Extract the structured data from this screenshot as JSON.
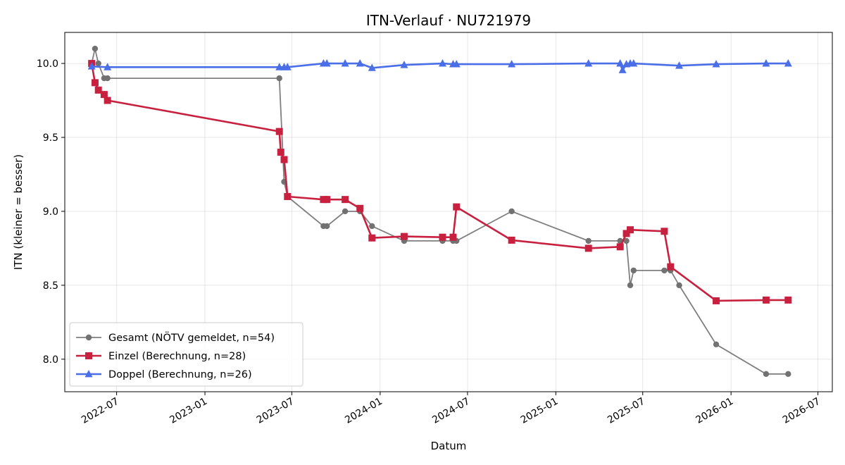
{
  "chart_data": {
    "type": "line",
    "title": "ITN-Verlauf · NU721979",
    "xlabel": "Datum",
    "ylabel": "ITN  (kleiner = besser)",
    "xlim": [
      "2022-03-15",
      "2026-07-31"
    ],
    "ylim": [
      7.78,
      10.21
    ],
    "x_ticks": [
      "2022-07",
      "2023-01",
      "2023-07",
      "2024-01",
      "2024-07",
      "2025-01",
      "2025-07",
      "2026-01",
      "2026-07"
    ],
    "y_ticks": [
      "8.0",
      "8.5",
      "9.0",
      "9.5",
      "10.0"
    ],
    "grid": true,
    "legend_position": "lower-left",
    "series": [
      {
        "name": "Gesamt (NÖTV gemeldet, n=54)",
        "color": "#555555",
        "marker": "circle",
        "points": [
          [
            "2022-05-10",
            10.0
          ],
          [
            "2022-05-17",
            10.1
          ],
          [
            "2022-05-24",
            10.0
          ],
          [
            "2022-06-05",
            9.9
          ],
          [
            "2022-06-12",
            9.9
          ],
          [
            "2023-06-05",
            9.9
          ],
          [
            "2023-06-15",
            9.2
          ],
          [
            "2023-06-22",
            9.1
          ],
          [
            "2023-09-05",
            8.9
          ],
          [
            "2023-09-12",
            8.9
          ],
          [
            "2023-10-20",
            9.0
          ],
          [
            "2023-11-20",
            9.0
          ],
          [
            "2023-12-15",
            8.9
          ],
          [
            "2024-02-20",
            8.8
          ],
          [
            "2024-05-10",
            8.8
          ],
          [
            "2024-06-01",
            8.8
          ],
          [
            "2024-06-08",
            8.8
          ],
          [
            "2024-10-01",
            9.0
          ],
          [
            "2025-03-10",
            8.8
          ],
          [
            "2025-05-15",
            8.8
          ],
          [
            "2025-05-28",
            8.8
          ],
          [
            "2025-06-05",
            8.5
          ],
          [
            "2025-06-12",
            8.6
          ],
          [
            "2025-08-15",
            8.6
          ],
          [
            "2025-08-28",
            8.6
          ],
          [
            "2025-09-15",
            8.5
          ],
          [
            "2025-12-01",
            8.1
          ],
          [
            "2026-03-15",
            7.9
          ],
          [
            "2026-04-30",
            7.9
          ]
        ]
      },
      {
        "name": "Einzel (Berechnung, n=28)",
        "color": "#c8203f",
        "marker": "square",
        "points": [
          [
            "2022-05-10",
            10.0
          ],
          [
            "2022-05-17",
            9.87
          ],
          [
            "2022-05-24",
            9.82
          ],
          [
            "2022-06-05",
            9.79
          ],
          [
            "2022-06-12",
            9.75
          ],
          [
            "2023-06-05",
            9.54
          ],
          [
            "2023-06-08",
            9.4
          ],
          [
            "2023-06-15",
            9.35
          ],
          [
            "2023-06-22",
            9.1
          ],
          [
            "2023-09-05",
            9.08
          ],
          [
            "2023-09-12",
            9.08
          ],
          [
            "2023-10-20",
            9.08
          ],
          [
            "2023-11-20",
            9.02
          ],
          [
            "2023-12-15",
            8.82
          ],
          [
            "2024-02-20",
            8.83
          ],
          [
            "2024-05-10",
            8.825
          ],
          [
            "2024-06-01",
            8.825
          ],
          [
            "2024-06-08",
            9.03
          ],
          [
            "2024-10-01",
            8.805
          ],
          [
            "2025-03-10",
            8.75
          ],
          [
            "2025-05-15",
            8.76
          ],
          [
            "2025-05-28",
            8.85
          ],
          [
            "2025-06-05",
            8.875
          ],
          [
            "2025-08-15",
            8.865
          ],
          [
            "2025-08-28",
            8.625
          ],
          [
            "2025-12-01",
            8.395
          ],
          [
            "2026-03-15",
            8.4
          ],
          [
            "2026-04-30",
            8.4
          ]
        ]
      },
      {
        "name": "Doppel (Berechnung, n=26)",
        "color": "#4a6ee8",
        "marker": "triangle",
        "points": [
          [
            "2022-05-10",
            9.98
          ],
          [
            "2022-06-12",
            9.975
          ],
          [
            "2023-06-05",
            9.975
          ],
          [
            "2023-06-15",
            9.975
          ],
          [
            "2023-06-22",
            9.975
          ],
          [
            "2023-09-05",
            10.0
          ],
          [
            "2023-09-12",
            10.0
          ],
          [
            "2023-10-20",
            10.0
          ],
          [
            "2023-11-20",
            10.0
          ],
          [
            "2023-12-15",
            9.97
          ],
          [
            "2024-02-20",
            9.99
          ],
          [
            "2024-05-10",
            10.0
          ],
          [
            "2024-06-01",
            9.995
          ],
          [
            "2024-06-08",
            9.995
          ],
          [
            "2024-10-01",
            9.995
          ],
          [
            "2025-03-10",
            10.0
          ],
          [
            "2025-05-15",
            10.0
          ],
          [
            "2025-05-20",
            9.955
          ],
          [
            "2025-05-28",
            9.995
          ],
          [
            "2025-06-05",
            10.0
          ],
          [
            "2025-06-12",
            10.0
          ],
          [
            "2025-09-15",
            9.985
          ],
          [
            "2025-12-01",
            9.995
          ],
          [
            "2026-03-15",
            10.0
          ],
          [
            "2026-04-30",
            10.0
          ]
        ]
      }
    ]
  }
}
